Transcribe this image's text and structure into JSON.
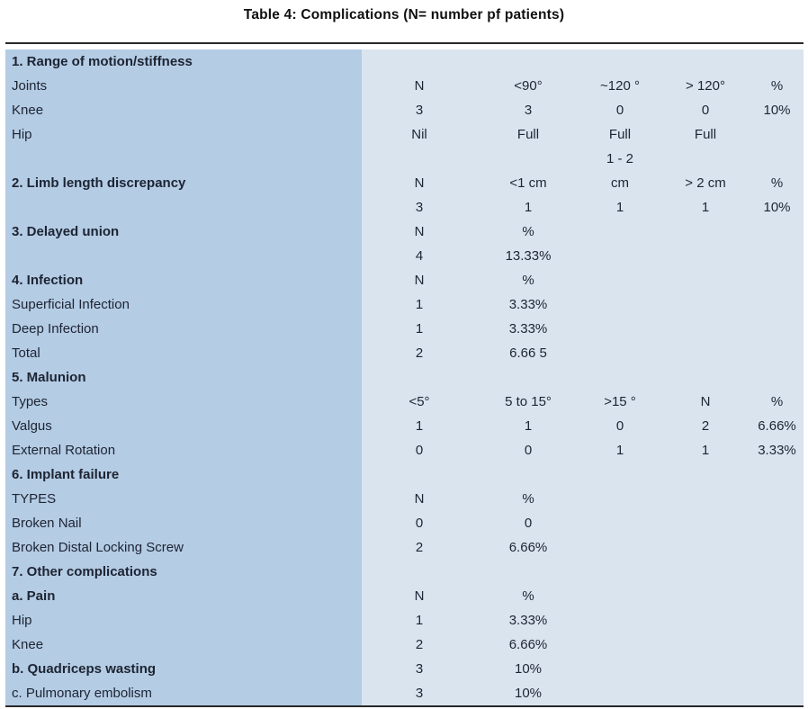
{
  "title": "Table 4: Complications (N= number pf patients)",
  "colors": {
    "label_column_bg": "#b4cce4",
    "data_area_bg": "#dae4ef",
    "rule": "#282828",
    "text": "#1d2433"
  },
  "chart_data": {
    "type": "table",
    "title": "Table 4: Complications (N= number pf patients)",
    "rows": [
      {
        "label": "1. Range of motion/stiffness",
        "bold": true,
        "cells": [
          "",
          "",
          "",
          "",
          ""
        ]
      },
      {
        "label": "Joints",
        "bold": false,
        "cells": [
          "N",
          "<90°",
          "~120 °",
          "> 120°",
          "%"
        ]
      },
      {
        "label": "Knee",
        "bold": false,
        "cells": [
          "3",
          "3",
          "0",
          "0",
          "10%"
        ]
      },
      {
        "label": "Hip",
        "bold": false,
        "cells": [
          "Nil",
          "Full",
          "Full",
          "Full",
          ""
        ]
      },
      {
        "label": "",
        "bold": false,
        "cells": [
          "",
          "",
          "1 - 2",
          "",
          ""
        ]
      },
      {
        "label": "2. Limb length discrepancy",
        "bold": true,
        "cells": [
          "N",
          "<1 cm",
          "cm",
          "> 2 cm",
          "%"
        ]
      },
      {
        "label": "",
        "bold": false,
        "cells": [
          "3",
          "1",
          "1",
          "1",
          "10%"
        ]
      },
      {
        "label": "3. Delayed union",
        "bold": true,
        "cells": [
          "N",
          "%",
          "",
          "",
          ""
        ]
      },
      {
        "label": "",
        "bold": false,
        "cells": [
          "4",
          "13.33%",
          "",
          "",
          ""
        ]
      },
      {
        "label": "4. Infection",
        "bold": true,
        "cells": [
          "N",
          "%",
          "",
          "",
          ""
        ]
      },
      {
        "label": "Superficial Infection",
        "bold": false,
        "cells": [
          "1",
          "3.33%",
          "",
          "",
          ""
        ]
      },
      {
        "label": "Deep Infection",
        "bold": false,
        "cells": [
          "1",
          "3.33%",
          "",
          "",
          ""
        ]
      },
      {
        "label": "Total",
        "bold": false,
        "cells": [
          "2",
          "6.66 5",
          "",
          "",
          ""
        ]
      },
      {
        "label": "5. Malunion",
        "bold": true,
        "cells": [
          "",
          "",
          "",
          "",
          ""
        ]
      },
      {
        "label": "Types",
        "bold": false,
        "cells": [
          "<5°",
          "5 to 15°",
          ">15 °",
          "N",
          "%"
        ]
      },
      {
        "label": "Valgus",
        "bold": false,
        "cells": [
          "1",
          "1",
          "0",
          "2",
          "6.66%"
        ]
      },
      {
        "label": "External Rotation",
        "bold": false,
        "cells": [
          "0",
          "0",
          "1",
          "1",
          "3.33%"
        ]
      },
      {
        "label": "6. Implant failure",
        "bold": true,
        "cells": [
          "",
          "",
          "",
          "",
          ""
        ]
      },
      {
        "label": "TYPES",
        "bold": false,
        "cells": [
          "N",
          "%",
          "",
          "",
          ""
        ]
      },
      {
        "label": "Broken Nail",
        "bold": false,
        "cells": [
          "0",
          "0",
          "",
          "",
          ""
        ]
      },
      {
        "label": "Broken Distal Locking Screw",
        "bold": false,
        "cells": [
          "2",
          "6.66%",
          "",
          "",
          ""
        ]
      },
      {
        "label": "7. Other complications",
        "bold": true,
        "cells": [
          "",
          "",
          "",
          "",
          ""
        ]
      },
      {
        "label": "a. Pain",
        "bold": true,
        "cells": [
          "N",
          "%",
          "",
          "",
          ""
        ]
      },
      {
        "label": "Hip",
        "bold": false,
        "cells": [
          "1",
          "3.33%",
          "",
          "",
          ""
        ]
      },
      {
        "label": "Knee",
        "bold": false,
        "cells": [
          "2",
          "6.66%",
          "",
          "",
          ""
        ]
      },
      {
        "label": "b. Quadriceps wasting",
        "bold": true,
        "cells": [
          "3",
          "10%",
          "",
          "",
          ""
        ]
      },
      {
        "label": "c. Pulmonary embolism",
        "bold": false,
        "cells": [
          "3",
          "10%",
          "",
          "",
          ""
        ]
      }
    ]
  }
}
